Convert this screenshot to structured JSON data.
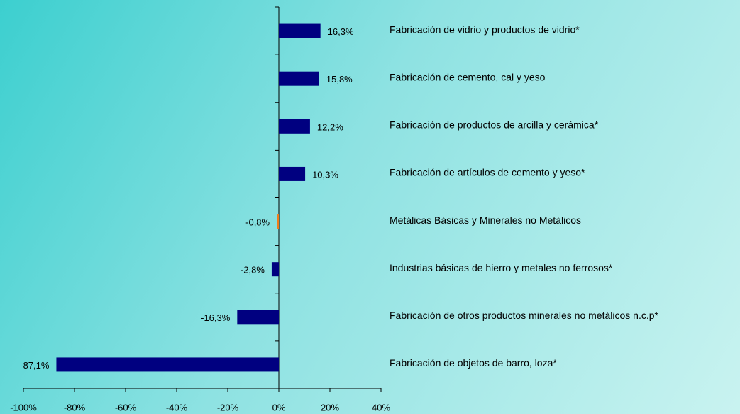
{
  "chart_data": {
    "type": "bar",
    "orientation": "horizontal",
    "categories": [
      "Fabricación de vidrio y productos de vidrio*",
      "Fabricación de cemento, cal y yeso",
      "Fabricación de productos de arcilla y cerámica*",
      "Fabricación de artículos de cemento y yeso*",
      "Metálicas Básicas y Minerales no Metálicos",
      "Industrias básicas de hierro y metales no ferrosos*",
      "Fabricación de otros productos minerales no metálicos n.c.p*",
      "Fabricación de objetos de barro, loza*"
    ],
    "values": [
      16.3,
      15.8,
      12.2,
      10.3,
      -0.8,
      -2.8,
      -16.3,
      -87.1
    ],
    "value_labels": [
      "16,3%",
      "15,8%",
      "12,2%",
      "10,3%",
      "-0,8%",
      "-2,8%",
      "-16,3%",
      "-87,1%"
    ],
    "colors": [
      "#000080",
      "#000080",
      "#000080",
      "#000080",
      "#f07d1a",
      "#000080",
      "#000080",
      "#000080"
    ],
    "xlim": [
      -100,
      40
    ],
    "xticks": [
      {
        "value": -100,
        "label": "-100%"
      },
      {
        "value": -80,
        "label": "-80%"
      },
      {
        "value": -60,
        "label": "-60%"
      },
      {
        "value": -40,
        "label": "-40%"
      },
      {
        "value": -20,
        "label": "-20%"
      },
      {
        "value": 0,
        "label": "0%"
      },
      {
        "value": 20,
        "label": "20%"
      },
      {
        "value": 40,
        "label": "40%"
      }
    ],
    "grid": false
  }
}
